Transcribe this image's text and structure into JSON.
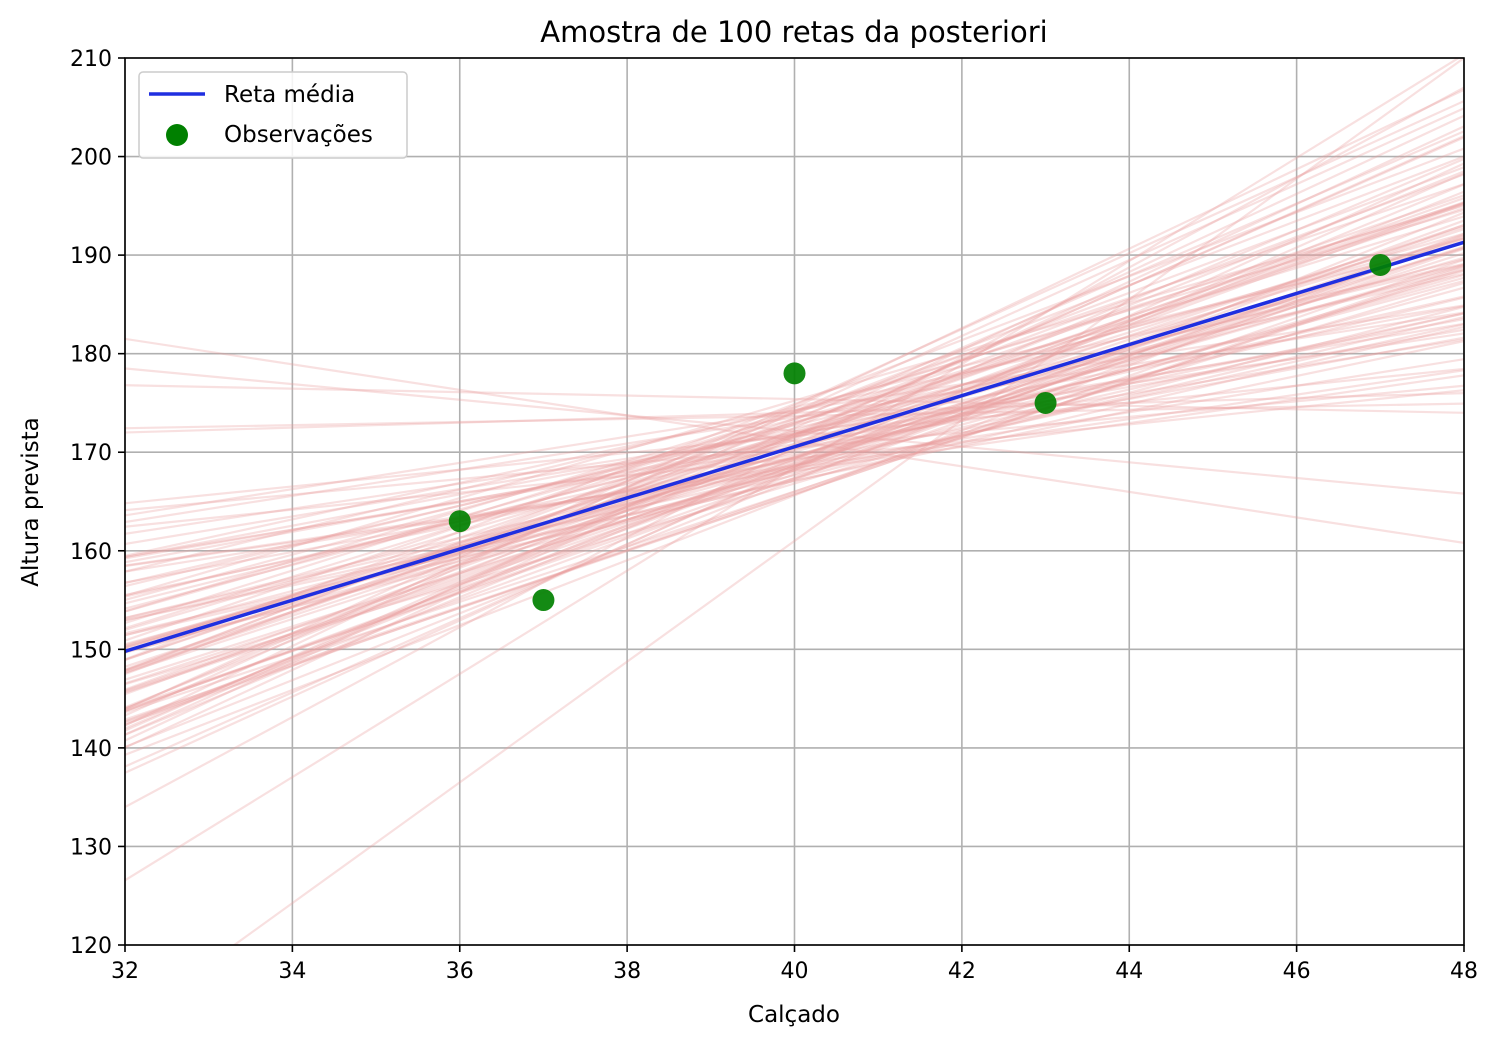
{
  "chart_data": {
    "type": "line",
    "title": "Amostra de 100 retas da posteriori",
    "xlabel": "Calçado",
    "ylabel": "Altura prevista",
    "xlim": [
      32,
      48
    ],
    "ylim": [
      120,
      210
    ],
    "xticks": [
      "32",
      "34",
      "36",
      "38",
      "40",
      "42",
      "44",
      "46",
      "48"
    ],
    "yticks": [
      "120",
      "130",
      "140",
      "150",
      "160",
      "170",
      "180",
      "190",
      "200",
      "210"
    ],
    "grid": true,
    "legend": {
      "placement": "upper-left"
    },
    "series": [
      {
        "name": "Reta média",
        "kind": "line",
        "color": "#1f2fe0",
        "points": [
          [
            32,
            149.8
          ],
          [
            48,
            191.3
          ]
        ]
      },
      {
        "name": "Observações",
        "kind": "scatter",
        "color": "#008000",
        "points": [
          [
            36,
            163
          ],
          [
            37,
            155
          ],
          [
            40,
            178
          ],
          [
            43,
            175
          ],
          [
            47,
            189
          ]
        ]
      }
    ],
    "posterior_lines": {
      "count": 100,
      "color": "#e8a0a0",
      "center": [
        40,
        170.5
      ],
      "slope_mean": 2.6,
      "slope_sd": 0.95,
      "intercept_sd": 2.8,
      "extreme_lines": [
        [
          [
            32,
            181.5
          ],
          [
            48,
            160.8
          ]
        ],
        [
          [
            32,
            178.5
          ],
          [
            48,
            165.8
          ]
        ],
        [
          [
            32,
            176.8
          ],
          [
            48,
            174.0
          ]
        ],
        [
          [
            32,
            172.0
          ],
          [
            48,
            176.0
          ]
        ],
        [
          [
            32,
            112.0
          ],
          [
            48,
            210.0
          ]
        ],
        [
          [
            32,
            134.0
          ],
          [
            48,
            207.0
          ]
        ]
      ]
    }
  }
}
